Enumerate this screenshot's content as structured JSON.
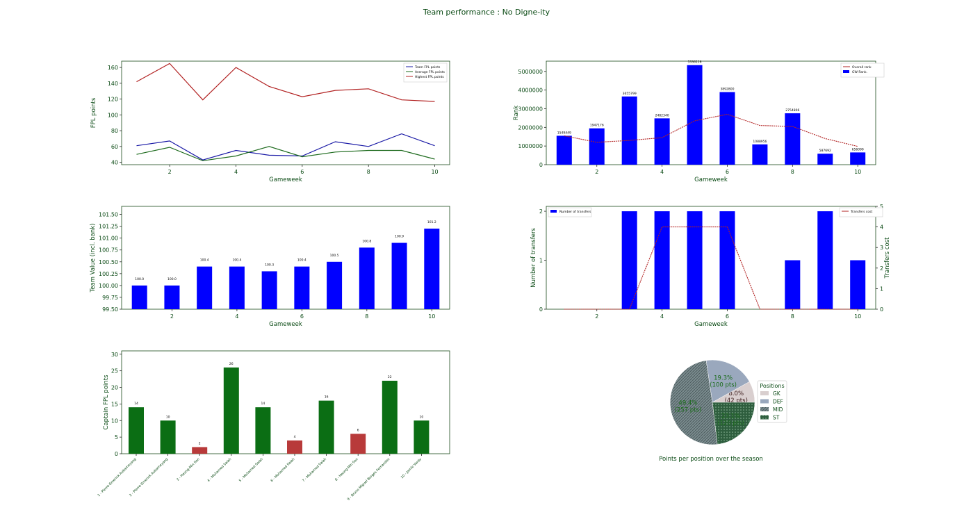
{
  "page": {
    "title": "Team performance : No Digne-ity",
    "text_color": "#0a4a14"
  },
  "colors": {
    "team_points": "#1a1aa6",
    "average_points": "#1e6b1e",
    "highest_points": "#b22222",
    "bar_blue": "#0000ff",
    "transfers_cost": "#b22222",
    "captain_green": "#0b6e14",
    "captain_red": "#b83a3a",
    "gk": "#d9cfcf",
    "def": "#9aa8bd",
    "mid": "#7b8c8f",
    "st": "#2e5e3e"
  },
  "chart_data": [
    {
      "id": "fpl_points",
      "type": "line",
      "xlabel": "Gameweek",
      "ylabel": "FPL points",
      "x": [
        1,
        2,
        3,
        4,
        5,
        6,
        7,
        8,
        9,
        10
      ],
      "xticks": [
        2,
        4,
        6,
        8,
        10
      ],
      "yticks": [
        40,
        60,
        80,
        100,
        120,
        140,
        160
      ],
      "xlim": [
        0.55,
        10.45
      ],
      "ylim": [
        37,
        168
      ],
      "legend_position": "upper-right",
      "series": [
        {
          "name": "Team FPL points",
          "color_key": "team_points",
          "values": [
            61,
            67,
            43,
            55,
            49,
            48,
            66,
            60,
            76,
            61
          ]
        },
        {
          "name": "Average FPL points",
          "color_key": "average_points",
          "values": [
            50,
            59,
            42,
            48,
            60,
            47,
            53,
            55,
            55,
            44
          ]
        },
        {
          "name": "Highest FPL points",
          "color_key": "highest_points",
          "values": [
            142,
            165,
            119,
            160,
            136,
            123,
            131,
            133,
            119,
            117
          ]
        }
      ]
    },
    {
      "id": "rank",
      "type": "bar+line",
      "xlabel": "Gameweek",
      "ylabel": "Rank",
      "x": [
        1,
        2,
        3,
        4,
        5,
        6,
        7,
        8,
        9,
        10
      ],
      "xticks": [
        2,
        4,
        6,
        8,
        10
      ],
      "yticks": [
        0,
        1000000,
        2000000,
        3000000,
        4000000,
        5000000
      ],
      "xlim": [
        0.45,
        10.55
      ],
      "ylim": [
        0,
        5550000
      ],
      "legend_position": "upper-right",
      "series": [
        {
          "name": "Overall rank",
          "kind": "line",
          "color_key": "highest_points",
          "values": [
            1549449,
            1200000,
            1300000,
            1450000,
            2350000,
            2700000,
            2100000,
            2050000,
            1400000,
            980000
          ]
        },
        {
          "name": "GW Rank.",
          "kind": "bar",
          "color_key": "bar_blue",
          "values": [
            1549449,
            1947176,
            3655799,
            2482340,
            5336116,
            3892800,
            1088956,
            2754806,
            587692,
            656099
          ],
          "labels": [
            "1549449",
            "1947176",
            "3655799",
            "2482340",
            "5336116",
            "3892800",
            "1088956",
            "2754806",
            "587692",
            "656099"
          ]
        }
      ]
    },
    {
      "id": "team_value",
      "type": "bar",
      "xlabel": "Gameweek",
      "ylabel": "Team Value (incl. bank)",
      "x": [
        1,
        2,
        3,
        4,
        5,
        6,
        7,
        8,
        9,
        10
      ],
      "xticks": [
        2,
        4,
        6,
        8,
        10
      ],
      "yticks": [
        99.5,
        99.75,
        100.0,
        100.25,
        100.5,
        100.75,
        101.0,
        101.25,
        101.5
      ],
      "ytick_labels": [
        "99.50",
        "99.75",
        "100.00",
        "100.25",
        "100.50",
        "100.75",
        "101.00",
        "101.25",
        "101.50"
      ],
      "xlim": [
        0.45,
        10.55
      ],
      "ylim": [
        99.5,
        101.67
      ],
      "values": [
        100.0,
        100.0,
        100.4,
        100.4,
        100.3,
        100.4,
        100.5,
        100.8,
        100.9,
        101.2
      ],
      "labels": [
        "100.0",
        "100.0",
        "100.4",
        "100.4",
        "100.3",
        "100.4",
        "100.5",
        "100.8",
        "100.9",
        "101.2"
      ]
    },
    {
      "id": "transfers",
      "type": "bar+line",
      "xlabel": "Gameweek",
      "ylabel": "Number of transfers",
      "y2label": "Transfers cost",
      "x": [
        1,
        2,
        3,
        4,
        5,
        6,
        7,
        8,
        9,
        10
      ],
      "xticks": [
        2,
        4,
        6,
        8,
        10
      ],
      "yticks": [
        0,
        1,
        2
      ],
      "y2ticks": [
        0,
        1,
        2,
        3,
        4,
        5
      ],
      "xlim": [
        0.45,
        10.55
      ],
      "ylim": [
        0,
        2.1
      ],
      "y2lim": [
        0,
        5
      ],
      "series": [
        {
          "name": "Number of transfers",
          "kind": "bar",
          "color_key": "bar_blue",
          "legend_position": "upper-left",
          "values": [
            0,
            0,
            2,
            2,
            2,
            2,
            0,
            1,
            2,
            1
          ]
        },
        {
          "name": "Transfers cost",
          "kind": "line",
          "axis": "right",
          "color_key": "transfers_cost",
          "legend_position": "upper-right",
          "values": [
            0,
            0,
            0,
            4,
            4,
            4,
            0,
            0,
            0,
            0
          ]
        }
      ]
    },
    {
      "id": "captain",
      "type": "bar",
      "ylabel": "Captain FPL points",
      "yticks": [
        0,
        5,
        10,
        15,
        20,
        25,
        30
      ],
      "ylim": [
        0,
        31
      ],
      "categories": [
        "1 - Pierre-Emerick Aubameyang",
        "2 - Pierre-Emerick Aubameyang",
        "3 - Heung-Min Son",
        "4 - Mohamed Salah",
        "5 - Mohamed Salah",
        "6 - Mohamed Salah",
        "7 - Mohamed Salah",
        "8 - Heung-Min Son",
        "9 - Bruno Miguel Borges Fernandes",
        "10 - Jamie Vardy"
      ],
      "values": [
        14,
        10,
        2,
        26,
        14,
        4,
        16,
        6,
        22,
        10
      ],
      "labels": [
        "14",
        "10",
        "2",
        "26",
        "14",
        "4",
        "16",
        "6",
        "22",
        "10"
      ],
      "bar_colors": [
        "captain_green",
        "captain_green",
        "captain_red",
        "captain_green",
        "captain_green",
        "captain_red",
        "captain_green",
        "captain_red",
        "captain_green",
        "captain_green"
      ]
    },
    {
      "id": "positions",
      "type": "pie",
      "title": "Points per position over the season",
      "legend_title": "Positions",
      "legend_position": "right",
      "slices": [
        {
          "name": "GK",
          "value": 42,
          "percent": "8.0%",
          "points": "(42 pts)",
          "color_key": "gk"
        },
        {
          "name": "DEF",
          "value": 100,
          "percent": "19.3%",
          "points": "(100 pts)",
          "color_key": "def"
        },
        {
          "name": "MID",
          "value": 257,
          "percent": "49.4%",
          "points": "(257 pts)",
          "color_key": "mid"
        },
        {
          "name": "ST",
          "value": 120,
          "percent": "23.1%",
          "points": "(120 pts)",
          "color_key": "st"
        }
      ]
    }
  ]
}
